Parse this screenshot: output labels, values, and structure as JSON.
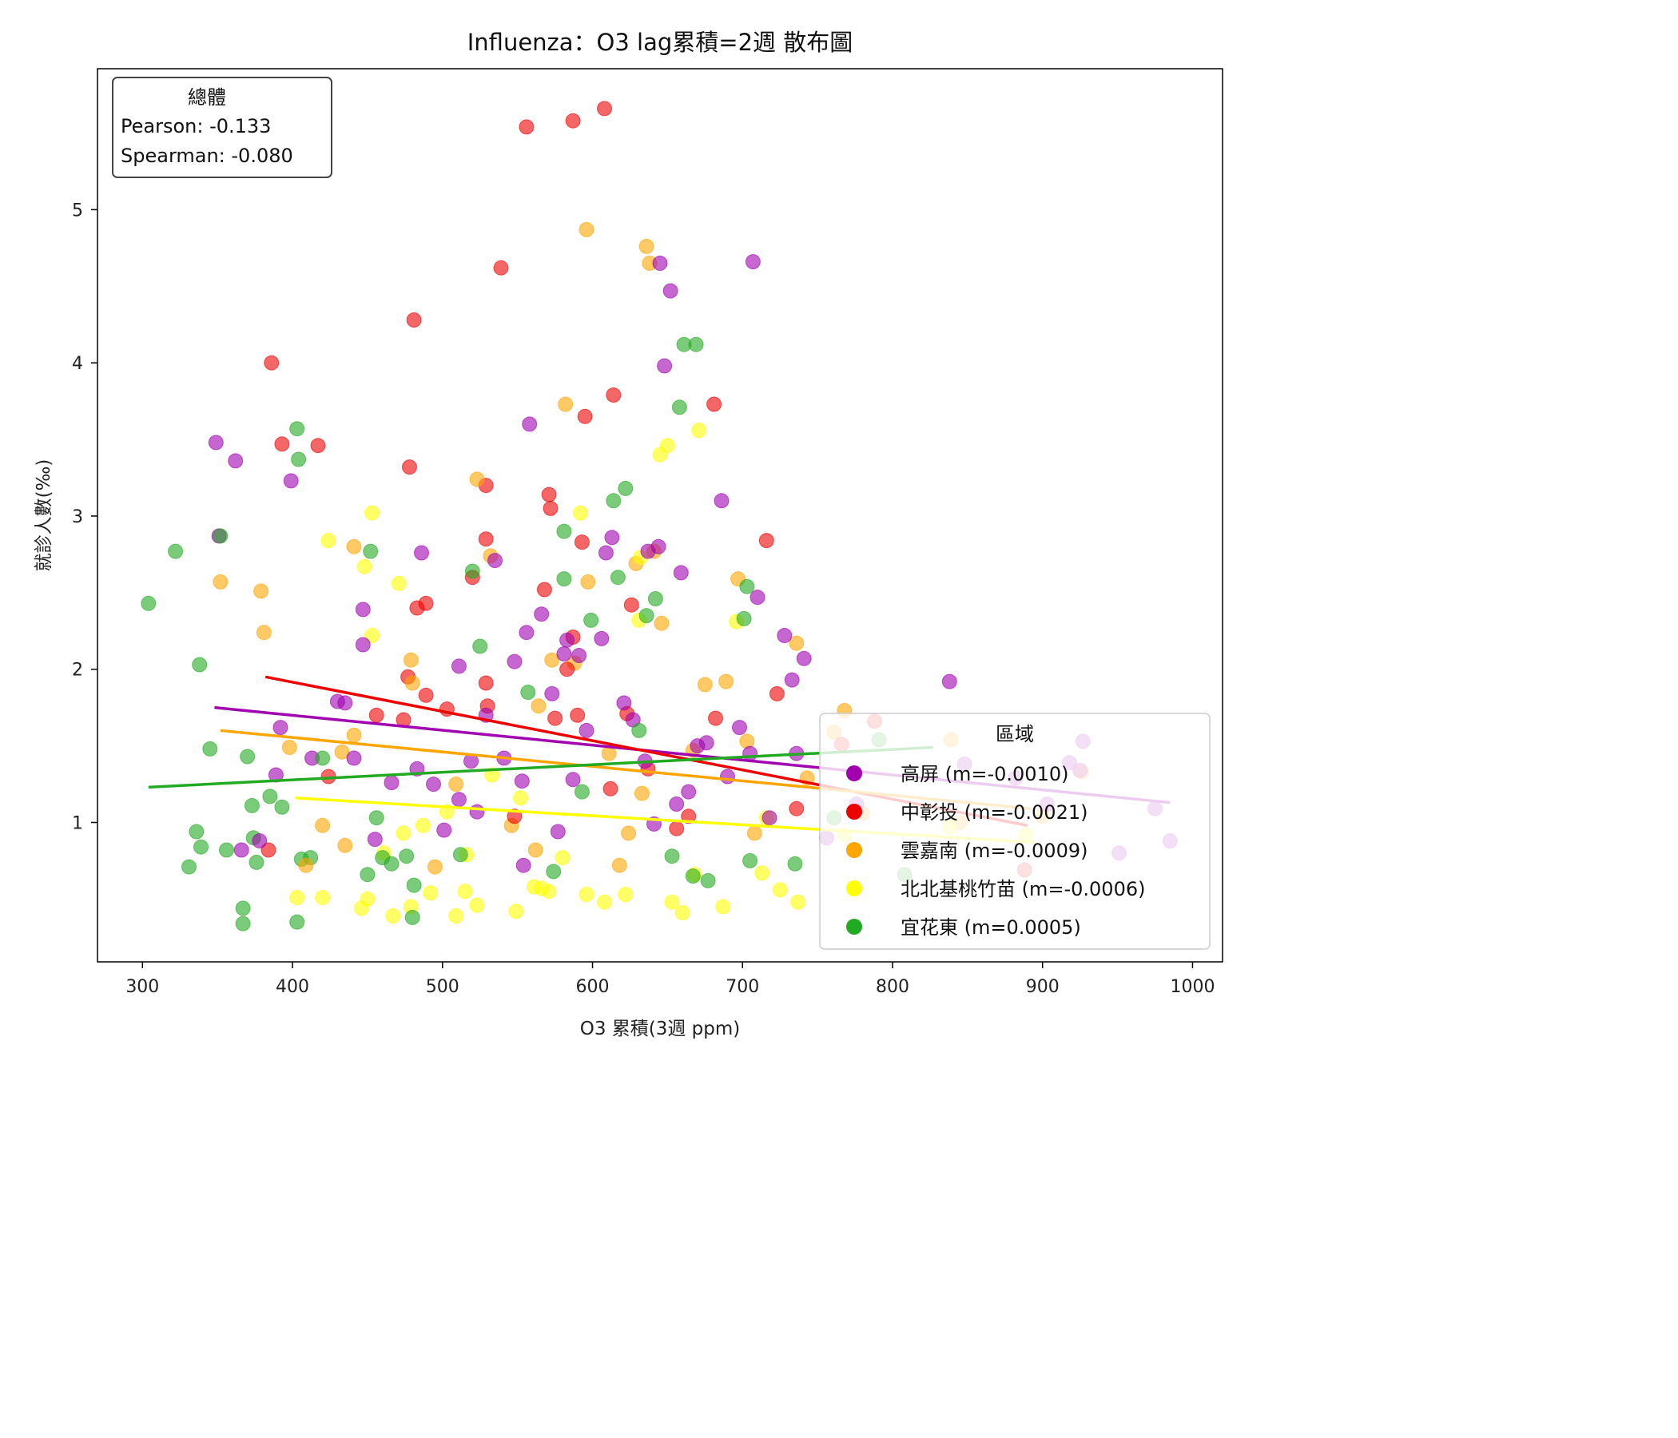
{
  "chart_data": {
    "type": "scatter",
    "title": "Influenza：O3 lag累積=2週 散布圖",
    "xlabel": "O3 累積(3週 ppm)",
    "ylabel": "就診人數(‰)",
    "xlim": [
      270,
      1020
    ],
    "ylim": [
      0.09,
      5.92
    ],
    "xticks": [
      "300",
      "400",
      "500",
      "600",
      "700",
      "800",
      "900",
      "1000"
    ],
    "yticks": [
      "1",
      "2",
      "3",
      "4",
      "5"
    ],
    "grid": false,
    "legend_placement": "lower-right",
    "legend_title": "區域",
    "stats_box": {
      "title": "總體",
      "pearson": "Pearson: -0.133",
      "spearman": "Spearman: -0.080"
    },
    "series": [
      {
        "name": "高屏 (m=-0.0010)",
        "color": "#a000b0",
        "trend": {
          "x0": 348,
          "y0": 1.75,
          "x1": 985,
          "y1": 1.13
        },
        "points": [
          [
            349,
            3.48
          ],
          [
            362,
            3.36
          ],
          [
            351,
            2.87
          ],
          [
            399,
            3.23
          ],
          [
            389,
            1.31
          ],
          [
            392,
            1.62
          ],
          [
            413,
            1.42
          ],
          [
            430,
            1.79
          ],
          [
            435,
            1.78
          ],
          [
            441,
            1.42
          ],
          [
            447,
            2.39
          ],
          [
            447,
            2.16
          ],
          [
            455,
            0.89
          ],
          [
            466,
            1.26
          ],
          [
            483,
            1.35
          ],
          [
            486,
            2.76
          ],
          [
            494,
            1.25
          ],
          [
            511,
            2.02
          ],
          [
            511,
            1.15
          ],
          [
            519,
            1.4
          ],
          [
            529,
            1.7
          ],
          [
            535,
            2.71
          ],
          [
            541,
            1.42
          ],
          [
            548,
            2.05
          ],
          [
            553,
            1.27
          ],
          [
            554,
            0.72
          ],
          [
            556,
            2.24
          ],
          [
            558,
            3.6
          ],
          [
            566,
            2.36
          ],
          [
            573,
            1.84
          ],
          [
            581,
            2.1
          ],
          [
            583,
            2.19
          ],
          [
            587,
            1.28
          ],
          [
            591,
            2.09
          ],
          [
            596,
            1.6
          ],
          [
            606,
            2.2
          ],
          [
            609,
            2.76
          ],
          [
            613,
            2.86
          ],
          [
            621,
            1.78
          ],
          [
            627,
            1.67
          ],
          [
            635,
            1.4
          ],
          [
            637,
            2.77
          ],
          [
            644,
            2.8
          ],
          [
            645,
            4.65
          ],
          [
            648,
            3.98
          ],
          [
            652,
            4.47
          ],
          [
            656,
            1.12
          ],
          [
            659,
            2.63
          ],
          [
            664,
            1.2
          ],
          [
            670,
            1.5
          ],
          [
            676,
            1.52
          ],
          [
            686,
            3.1
          ],
          [
            690,
            1.3
          ],
          [
            698,
            1.62
          ],
          [
            705,
            1.45
          ],
          [
            707,
            4.66
          ],
          [
            710,
            2.47
          ],
          [
            718,
            1.03
          ],
          [
            728,
            2.22
          ],
          [
            733,
            1.93
          ],
          [
            736,
            1.45
          ],
          [
            741,
            2.07
          ],
          [
            756,
            0.9
          ],
          [
            776,
            1.12
          ],
          [
            838,
            1.92
          ],
          [
            848,
            1.38
          ],
          [
            882,
            1.29
          ],
          [
            903,
            1.12
          ],
          [
            918,
            1.39
          ],
          [
            925,
            1.34
          ],
          [
            927,
            1.53
          ],
          [
            951,
            0.8
          ],
          [
            975,
            1.09
          ],
          [
            985,
            0.88
          ],
          [
            366,
            0.82
          ],
          [
            378,
            0.88
          ],
          [
            501,
            0.95
          ],
          [
            523,
            1.07
          ],
          [
            577,
            0.94
          ],
          [
            641,
            0.99
          ]
        ]
      },
      {
        "name": "中彰投 (m=-0.0021)",
        "color": "#ee0000",
        "trend": {
          "x0": 382,
          "y0": 1.95,
          "x1": 890,
          "y1": 0.98
        },
        "points": [
          [
            386,
            4.0
          ],
          [
            393,
            3.47
          ],
          [
            417,
            3.46
          ],
          [
            474,
            1.67
          ],
          [
            477,
            1.95
          ],
          [
            478,
            3.32
          ],
          [
            481,
            4.28
          ],
          [
            483,
            2.4
          ],
          [
            489,
            2.43
          ],
          [
            489,
            1.83
          ],
          [
            520,
            2.6
          ],
          [
            529,
            3.2
          ],
          [
            529,
            2.85
          ],
          [
            529,
            1.91
          ],
          [
            530,
            1.76
          ],
          [
            539,
            4.62
          ],
          [
            556,
            5.54
          ],
          [
            568,
            2.52
          ],
          [
            571,
            3.14
          ],
          [
            572,
            3.05
          ],
          [
            575,
            1.68
          ],
          [
            583,
            2.0
          ],
          [
            587,
            2.21
          ],
          [
            587,
            5.58
          ],
          [
            590,
            1.7
          ],
          [
            593,
            2.83
          ],
          [
            595,
            3.65
          ],
          [
            608,
            5.66
          ],
          [
            614,
            3.79
          ],
          [
            623,
            1.71
          ],
          [
            626,
            2.42
          ],
          [
            637,
            1.35
          ],
          [
            664,
            1.04
          ],
          [
            681,
            3.73
          ],
          [
            682,
            1.68
          ],
          [
            716,
            2.84
          ],
          [
            723,
            1.84
          ],
          [
            766,
            1.51
          ],
          [
            788,
            1.66
          ],
          [
            888,
            0.69
          ],
          [
            384,
            0.82
          ],
          [
            424,
            1.3
          ],
          [
            456,
            1.7
          ],
          [
            503,
            1.74
          ],
          [
            548,
            1.04
          ],
          [
            612,
            1.22
          ],
          [
            656,
            0.96
          ],
          [
            736,
            1.09
          ]
        ]
      },
      {
        "name": "雲嘉南 (m=-0.0009)",
        "color": "#ffa500",
        "trend": {
          "x0": 352,
          "y0": 1.6,
          "x1": 892,
          "y1": 1.09
        },
        "points": [
          [
            352,
            2.57
          ],
          [
            379,
            2.51
          ],
          [
            381,
            2.24
          ],
          [
            398,
            1.49
          ],
          [
            420,
            0.98
          ],
          [
            433,
            1.46
          ],
          [
            441,
            2.8
          ],
          [
            441,
            1.57
          ],
          [
            479,
            2.06
          ],
          [
            480,
            1.91
          ],
          [
            509,
            1.25
          ],
          [
            523,
            3.24
          ],
          [
            532,
            2.74
          ],
          [
            546,
            0.98
          ],
          [
            564,
            1.76
          ],
          [
            573,
            2.06
          ],
          [
            582,
            3.73
          ],
          [
            588,
            2.04
          ],
          [
            596,
            4.87
          ],
          [
            597,
            2.57
          ],
          [
            611,
            1.45
          ],
          [
            624,
            0.93
          ],
          [
            629,
            2.69
          ],
          [
            633,
            1.19
          ],
          [
            636,
            4.76
          ],
          [
            638,
            4.65
          ],
          [
            641,
            2.77
          ],
          [
            646,
            2.3
          ],
          [
            667,
            1.47
          ],
          [
            675,
            1.9
          ],
          [
            689,
            1.92
          ],
          [
            697,
            2.59
          ],
          [
            703,
            1.53
          ],
          [
            736,
            2.17
          ],
          [
            743,
            1.29
          ],
          [
            761,
            1.59
          ],
          [
            768,
            1.73
          ],
          [
            780,
            1.06
          ],
          [
            839,
            1.54
          ],
          [
            845,
            1.0
          ],
          [
            900,
            1.04
          ],
          [
            926,
            1.33
          ],
          [
            409,
            0.72
          ],
          [
            435,
            0.85
          ],
          [
            495,
            0.71
          ],
          [
            562,
            0.82
          ],
          [
            618,
            0.72
          ],
          [
            708,
            0.93
          ]
        ]
      },
      {
        "name": "北北基桃竹苗 (m=-0.0006)",
        "color": "#ffff00",
        "trend": {
          "x0": 402,
          "y0": 1.16,
          "x1": 895,
          "y1": 0.87
        },
        "points": [
          [
            403,
            0.51
          ],
          [
            420,
            0.51
          ],
          [
            424,
            2.84
          ],
          [
            446,
            0.44
          ],
          [
            448,
            2.67
          ],
          [
            450,
            0.5
          ],
          [
            453,
            3.02
          ],
          [
            453,
            2.22
          ],
          [
            461,
            0.8
          ],
          [
            467,
            0.39
          ],
          [
            471,
            2.56
          ],
          [
            479,
            0.45
          ],
          [
            487,
            0.98
          ],
          [
            492,
            0.54
          ],
          [
            503,
            1.07
          ],
          [
            509,
            0.39
          ],
          [
            515,
            0.55
          ],
          [
            523,
            0.46
          ],
          [
            533,
            1.31
          ],
          [
            549,
            0.42
          ],
          [
            552,
            1.16
          ],
          [
            561,
            0.58
          ],
          [
            566,
            0.57
          ],
          [
            571,
            0.55
          ],
          [
            592,
            3.02
          ],
          [
            596,
            0.53
          ],
          [
            608,
            0.48
          ],
          [
            622,
            0.53
          ],
          [
            631,
            2.32
          ],
          [
            632,
            2.73
          ],
          [
            645,
            3.4
          ],
          [
            650,
            3.46
          ],
          [
            653,
            0.48
          ],
          [
            660,
            0.41
          ],
          [
            671,
            3.56
          ],
          [
            687,
            0.45
          ],
          [
            696,
            2.31
          ],
          [
            716,
            1.03
          ],
          [
            725,
            0.56
          ],
          [
            737,
            0.48
          ],
          [
            768,
            0.92
          ],
          [
            838,
            0.97
          ],
          [
            889,
            0.92
          ],
          [
            474,
            0.93
          ],
          [
            516,
            0.79
          ],
          [
            580,
            0.77
          ],
          [
            668,
            0.66
          ],
          [
            713,
            0.67
          ]
        ]
      },
      {
        "name": "宜花東 (m=0.0005)",
        "color": "#22aa22",
        "trend": {
          "x0": 304,
          "y0": 1.23,
          "x1": 827,
          "y1": 1.49
        },
        "points": [
          [
            304,
            2.43
          ],
          [
            322,
            2.77
          ],
          [
            331,
            0.71
          ],
          [
            336,
            0.94
          ],
          [
            338,
            2.03
          ],
          [
            339,
            0.84
          ],
          [
            345,
            1.48
          ],
          [
            352,
            2.87
          ],
          [
            356,
            0.82
          ],
          [
            367,
            0.44
          ],
          [
            367,
            0.34
          ],
          [
            370,
            1.43
          ],
          [
            373,
            1.11
          ],
          [
            374,
            0.9
          ],
          [
            376,
            0.74
          ],
          [
            385,
            1.17
          ],
          [
            393,
            1.1
          ],
          [
            403,
            0.35
          ],
          [
            403,
            3.57
          ],
          [
            404,
            3.37
          ],
          [
            406,
            0.76
          ],
          [
            412,
            0.77
          ],
          [
            420,
            1.42
          ],
          [
            450,
            0.66
          ],
          [
            452,
            2.77
          ],
          [
            456,
            1.03
          ],
          [
            460,
            0.77
          ],
          [
            466,
            0.73
          ],
          [
            476,
            0.78
          ],
          [
            480,
            0.38
          ],
          [
            481,
            0.59
          ],
          [
            520,
            2.64
          ],
          [
            525,
            2.15
          ],
          [
            557,
            1.85
          ],
          [
            574,
            0.68
          ],
          [
            581,
            2.9
          ],
          [
            581,
            2.59
          ],
          [
            599,
            2.32
          ],
          [
            614,
            3.1
          ],
          [
            617,
            2.6
          ],
          [
            622,
            3.18
          ],
          [
            631,
            1.6
          ],
          [
            636,
            2.35
          ],
          [
            642,
            2.46
          ],
          [
            653,
            0.78
          ],
          [
            658,
            3.71
          ],
          [
            661,
            4.12
          ],
          [
            667,
            0.65
          ],
          [
            669,
            4.12
          ],
          [
            677,
            0.62
          ],
          [
            701,
            2.33
          ],
          [
            703,
            2.54
          ],
          [
            761,
            1.03
          ],
          [
            791,
            1.54
          ],
          [
            808,
            0.66
          ],
          [
            512,
            0.79
          ],
          [
            593,
            1.2
          ],
          [
            705,
            0.75
          ],
          [
            735,
            0.73
          ]
        ]
      }
    ]
  }
}
